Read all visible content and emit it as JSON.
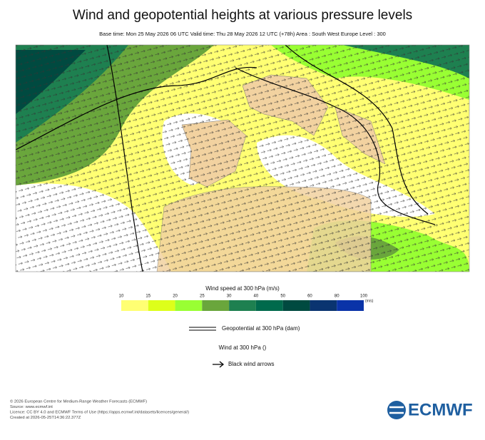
{
  "header": {
    "title": "Wind and geopotential heights at various pressure levels",
    "subtitle": "Base time: Mon 25 May 2026 06 UTC Valid time: Thu 28 May 2026 12 UTC (+78h) Area : South West Europe Level : 300"
  },
  "colorbar": {
    "title": "Wind speed at 300 hPa (m/s)",
    "ticks": [
      10,
      15,
      20,
      25,
      30,
      40,
      50,
      60,
      80,
      100
    ],
    "unit": "(m/s)",
    "colors": [
      "#ffff73",
      "#ddff1a",
      "#99ff33",
      "#6aa63c",
      "#1e8050",
      "#006a4c",
      "#004a40",
      "#0a3470",
      "#0a33a8"
    ]
  },
  "legend": {
    "geopotential": "Geopotential at 300 hPa (dam)",
    "wind": "Wind at 300 hPa ()",
    "arrows": "Black wind arrows"
  },
  "footer": {
    "lines": [
      "© 2026 European Centre for Medium-Range Weather Forecasts (ECMWF)",
      "Source: www.ecmwf.int",
      "Licence: CC BY 4.0 and ECMWF Terms of Use (https://apps.ecmwf.int/datasets/licences/general/)",
      "Created at 2026-05-25T14:36:22.377Z"
    ],
    "logo": "ECMWF"
  }
}
